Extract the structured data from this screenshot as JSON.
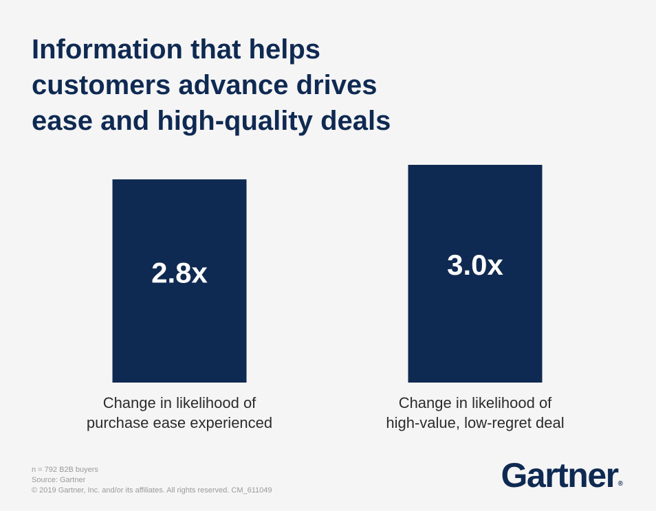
{
  "title_lines": [
    "Information that helps",
    "customers advance drives",
    "ease and high-quality deals"
  ],
  "chart_data": {
    "type": "bar",
    "categories": [
      [
        "Change in likelihood of",
        "purchase ease experienced"
      ],
      [
        "Change in likelihood of",
        "high-value, low-regret deal"
      ]
    ],
    "values": [
      2.8,
      3.0
    ],
    "data_labels": [
      "2.8x",
      "3.0x"
    ],
    "title": "Information that helps customers advance drives ease and high-quality deals",
    "xlabel": "",
    "ylabel": "",
    "ylim": [
      0,
      3.0
    ],
    "bar_color": "#0f2a52",
    "label_color": "#ffffff"
  },
  "footnotes": [
    "n = 792 B2B buyers",
    "Source: Gartner",
    "© 2019 Gartner, Inc. and/or its affiliates. All rights reserved. CM_611049"
  ],
  "logo": {
    "text": "Gartner",
    "mark": "®"
  }
}
